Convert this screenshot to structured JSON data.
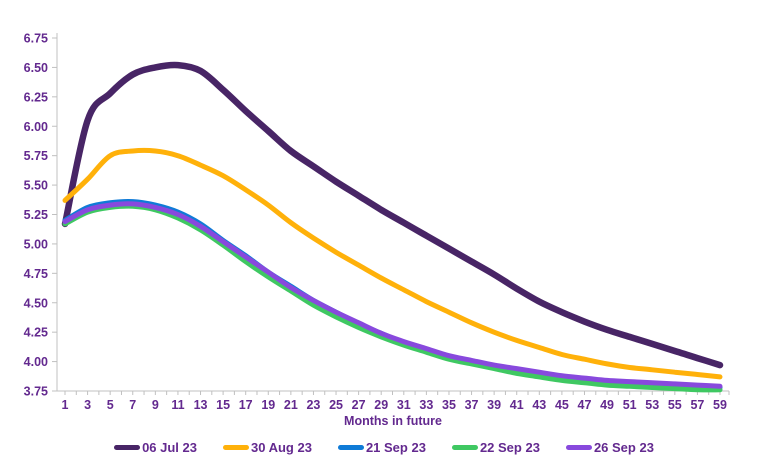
{
  "colors": {
    "background": "#ffffff",
    "text": "#63298f",
    "axis": "#c0c0c0"
  },
  "chart_data": {
    "type": "line",
    "xlabel": "Months in future",
    "ylim": [
      3.75,
      6.75
    ],
    "ytick_step": 0.25,
    "yticks": [
      6.75,
      6.5,
      6.25,
      6.0,
      5.75,
      5.5,
      5.25,
      5.0,
      4.75,
      4.5,
      4.25,
      4.0,
      3.75
    ],
    "xticks": [
      1,
      3,
      5,
      7,
      9,
      11,
      13,
      15,
      17,
      19,
      21,
      23,
      25,
      27,
      29,
      31,
      33,
      35,
      37,
      39,
      41,
      43,
      45,
      47,
      49,
      51,
      53,
      55,
      57,
      59
    ],
    "x": [
      1,
      3,
      5,
      7,
      9,
      11,
      13,
      15,
      17,
      19,
      21,
      23,
      25,
      27,
      29,
      31,
      33,
      35,
      37,
      39,
      41,
      43,
      45,
      47,
      49,
      51,
      53,
      55,
      57,
      59
    ],
    "grid": false,
    "legend_position": "bottom",
    "series": [
      {
        "name": "06 Jul 23",
        "color": "#482566",
        "values": [
          5.17,
          6.05,
          6.28,
          6.44,
          6.5,
          6.52,
          6.47,
          6.31,
          6.13,
          5.96,
          5.79,
          5.66,
          5.53,
          5.41,
          5.29,
          5.18,
          5.07,
          4.96,
          4.85,
          4.74,
          4.62,
          4.51,
          4.42,
          4.34,
          4.27,
          4.21,
          4.15,
          4.09,
          4.03,
          3.97
        ]
      },
      {
        "name": "30 Aug 23",
        "color": "#ffb10a",
        "values": [
          5.37,
          5.55,
          5.75,
          5.79,
          5.79,
          5.75,
          5.67,
          5.58,
          5.46,
          5.33,
          5.18,
          5.05,
          4.93,
          4.82,
          4.71,
          4.61,
          4.51,
          4.42,
          4.33,
          4.25,
          4.18,
          4.12,
          4.06,
          4.02,
          3.98,
          3.95,
          3.93,
          3.91,
          3.89,
          3.87
        ]
      },
      {
        "name": "21 Sep 23",
        "color": "#0f7bd7",
        "values": [
          5.2,
          5.31,
          5.35,
          5.36,
          5.33,
          5.27,
          5.17,
          5.03,
          4.9,
          4.76,
          4.64,
          4.52,
          4.42,
          4.32,
          4.24,
          4.16,
          4.1,
          4.04,
          4.0,
          3.96,
          3.92,
          3.89,
          3.87,
          3.85,
          3.83,
          3.82,
          3.81,
          3.8,
          3.79,
          3.78
        ]
      },
      {
        "name": "22 Sep 23",
        "color": "#3fc862",
        "values": [
          5.17,
          5.27,
          5.31,
          5.32,
          5.29,
          5.22,
          5.12,
          4.99,
          4.85,
          4.72,
          4.6,
          4.48,
          4.38,
          4.29,
          4.21,
          4.14,
          4.08,
          4.02,
          3.98,
          3.94,
          3.9,
          3.87,
          3.84,
          3.82,
          3.8,
          3.79,
          3.78,
          3.77,
          3.76,
          3.76
        ]
      },
      {
        "name": "26 Sep 23",
        "color": "#8849dd",
        "values": [
          5.19,
          5.29,
          5.33,
          5.34,
          5.31,
          5.25,
          5.15,
          5.02,
          4.89,
          4.76,
          4.63,
          4.52,
          4.42,
          4.33,
          4.24,
          4.17,
          4.11,
          4.05,
          4.01,
          3.97,
          3.94,
          3.91,
          3.88,
          3.86,
          3.84,
          3.83,
          3.82,
          3.81,
          3.8,
          3.79
        ]
      }
    ]
  }
}
